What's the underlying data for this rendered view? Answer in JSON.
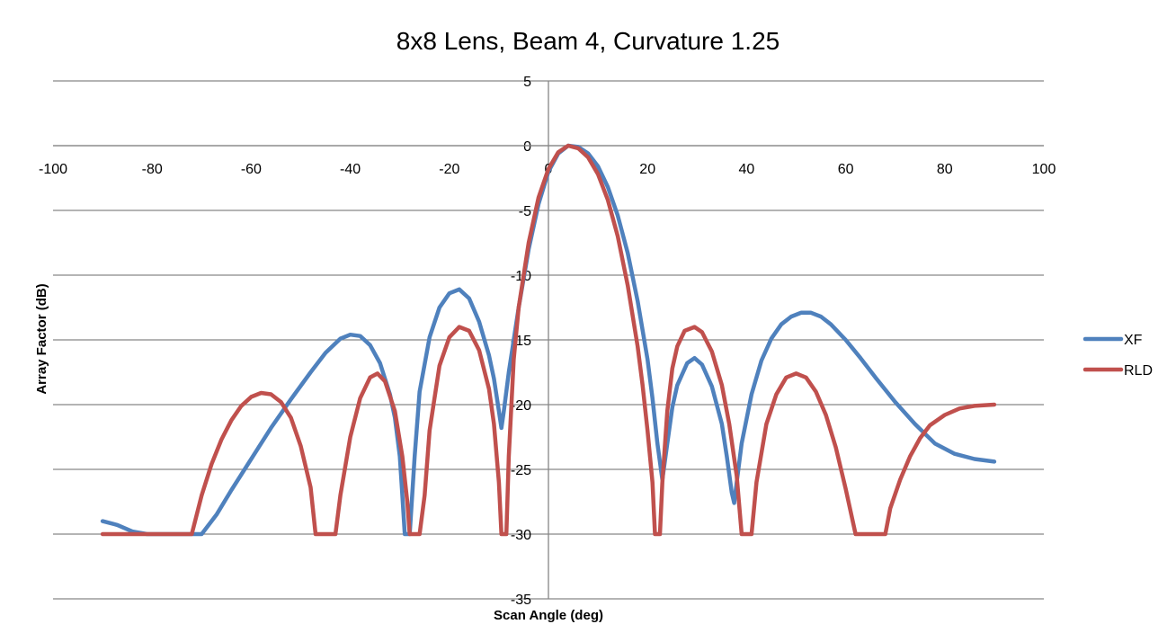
{
  "chart_data": {
    "type": "line",
    "title": "8x8 Lens, Beam 4, Curvature 1.25",
    "xlabel": "Scan Angle (deg)",
    "ylabel": "Array Factor (dB)",
    "xlim": [
      -100,
      100
    ],
    "ylim": [
      -35,
      5
    ],
    "x_ticks": [
      -100,
      -80,
      -60,
      -40,
      -20,
      0,
      20,
      40,
      60,
      80,
      100
    ],
    "y_ticks": [
      5,
      0,
      -5,
      -10,
      -15,
      -20,
      -25,
      -30,
      -35
    ],
    "grid": "horizontal",
    "legend_position": "right",
    "series": [
      {
        "name": "XF",
        "color": "#4F81BD",
        "points": [
          [
            -90,
            -29.0
          ],
          [
            -87,
            -29.3
          ],
          [
            -84,
            -29.8
          ],
          [
            -81,
            -30.0
          ],
          [
            -77,
            -30.0
          ],
          [
            -73,
            -30.0
          ],
          [
            -70,
            -30.0
          ],
          [
            -67,
            -28.5
          ],
          [
            -64,
            -26.6
          ],
          [
            -60,
            -24.2
          ],
          [
            -56,
            -21.8
          ],
          [
            -52,
            -19.6
          ],
          [
            -48,
            -17.5
          ],
          [
            -45,
            -16.0
          ],
          [
            -42,
            -14.9
          ],
          [
            -40,
            -14.6
          ],
          [
            -38,
            -14.7
          ],
          [
            -36,
            -15.4
          ],
          [
            -34,
            -16.8
          ],
          [
            -32,
            -19.2
          ],
          [
            -31,
            -21.0
          ],
          [
            -30,
            -24.0
          ],
          [
            -29.5,
            -27.0
          ],
          [
            -29,
            -30.0
          ],
          [
            -28,
            -30.0
          ],
          [
            -27,
            -24.0
          ],
          [
            -26,
            -19.0
          ],
          [
            -24,
            -14.8
          ],
          [
            -22,
            -12.5
          ],
          [
            -20,
            -11.4
          ],
          [
            -18,
            -11.1
          ],
          [
            -16,
            -11.8
          ],
          [
            -14,
            -13.6
          ],
          [
            -12,
            -16.2
          ],
          [
            -11,
            -18.0
          ],
          [
            -10,
            -20.5
          ],
          [
            -9.5,
            -21.8
          ],
          [
            -9,
            -20.5
          ],
          [
            -8,
            -17.5
          ],
          [
            -6,
            -12.5
          ],
          [
            -4,
            -8.0
          ],
          [
            -2,
            -4.5
          ],
          [
            0,
            -2.0
          ],
          [
            2,
            -0.6
          ],
          [
            4,
            0.0
          ],
          [
            6,
            -0.1
          ],
          [
            8,
            -0.6
          ],
          [
            10,
            -1.6
          ],
          [
            12,
            -3.2
          ],
          [
            14,
            -5.4
          ],
          [
            16,
            -8.3
          ],
          [
            18,
            -12.0
          ],
          [
            20,
            -16.5
          ],
          [
            21,
            -19.5
          ],
          [
            22,
            -23.0
          ],
          [
            23,
            -25.8
          ],
          [
            24,
            -23.0
          ],
          [
            25,
            -20.2
          ],
          [
            26,
            -18.5
          ],
          [
            28,
            -16.8
          ],
          [
            29.5,
            -16.4
          ],
          [
            31,
            -16.9
          ],
          [
            33,
            -18.6
          ],
          [
            35,
            -21.5
          ],
          [
            36,
            -24.0
          ],
          [
            37,
            -26.8
          ],
          [
            37.5,
            -27.6
          ],
          [
            38,
            -26.0
          ],
          [
            39,
            -23.0
          ],
          [
            41,
            -19.2
          ],
          [
            43,
            -16.6
          ],
          [
            45,
            -14.9
          ],
          [
            47,
            -13.8
          ],
          [
            49,
            -13.2
          ],
          [
            51,
            -12.9
          ],
          [
            53,
            -12.9
          ],
          [
            55,
            -13.2
          ],
          [
            57,
            -13.8
          ],
          [
            60,
            -15.0
          ],
          [
            63,
            -16.4
          ],
          [
            66,
            -17.9
          ],
          [
            70,
            -19.8
          ],
          [
            74,
            -21.5
          ],
          [
            78,
            -23.0
          ],
          [
            82,
            -23.8
          ],
          [
            86,
            -24.2
          ],
          [
            90,
            -24.4
          ]
        ]
      },
      {
        "name": "RLD",
        "color": "#C0504D",
        "points": [
          [
            -90,
            -30.0
          ],
          [
            -80,
            -30.0
          ],
          [
            -72,
            -30.0
          ],
          [
            -70,
            -27.0
          ],
          [
            -68,
            -24.6
          ],
          [
            -66,
            -22.7
          ],
          [
            -64,
            -21.2
          ],
          [
            -62,
            -20.1
          ],
          [
            -60,
            -19.4
          ],
          [
            -58,
            -19.1
          ],
          [
            -56,
            -19.2
          ],
          [
            -54,
            -19.8
          ],
          [
            -52,
            -21.0
          ],
          [
            -50,
            -23.2
          ],
          [
            -48,
            -26.4
          ],
          [
            -47,
            -30.0
          ],
          [
            -43,
            -30.0
          ],
          [
            -42,
            -27.0
          ],
          [
            -40,
            -22.5
          ],
          [
            -38,
            -19.5
          ],
          [
            -36,
            -17.9
          ],
          [
            -34.5,
            -17.6
          ],
          [
            -33,
            -18.2
          ],
          [
            -31,
            -20.5
          ],
          [
            -29.5,
            -24.0
          ],
          [
            -28.5,
            -27.5
          ],
          [
            -28,
            -30.0
          ],
          [
            -26,
            -30.0
          ],
          [
            -25,
            -27.0
          ],
          [
            -24,
            -22.0
          ],
          [
            -22,
            -17.0
          ],
          [
            -20,
            -14.8
          ],
          [
            -18,
            -14.0
          ],
          [
            -16,
            -14.3
          ],
          [
            -14,
            -15.8
          ],
          [
            -12,
            -18.8
          ],
          [
            -11,
            -21.5
          ],
          [
            -10,
            -26.0
          ],
          [
            -9.5,
            -30.0
          ],
          [
            -8.5,
            -30.0
          ],
          [
            -8,
            -24.0
          ],
          [
            -7,
            -16.5
          ],
          [
            -6,
            -12.5
          ],
          [
            -4,
            -7.5
          ],
          [
            -2,
            -4.0
          ],
          [
            0,
            -1.8
          ],
          [
            2,
            -0.5
          ],
          [
            4,
            0.0
          ],
          [
            6,
            -0.2
          ],
          [
            8,
            -0.9
          ],
          [
            10,
            -2.2
          ],
          [
            12,
            -4.2
          ],
          [
            14,
            -7.0
          ],
          [
            16,
            -10.8
          ],
          [
            18,
            -15.5
          ],
          [
            19,
            -18.5
          ],
          [
            20,
            -22.0
          ],
          [
            21,
            -26.0
          ],
          [
            21.5,
            -30.0
          ],
          [
            22.5,
            -30.0
          ],
          [
            23,
            -26.0
          ],
          [
            24,
            -20.5
          ],
          [
            25,
            -17.2
          ],
          [
            26,
            -15.5
          ],
          [
            27.5,
            -14.3
          ],
          [
            29.5,
            -14.0
          ],
          [
            31,
            -14.4
          ],
          [
            33,
            -15.9
          ],
          [
            35,
            -18.5
          ],
          [
            36.5,
            -21.5
          ],
          [
            38,
            -25.5
          ],
          [
            39,
            -30.0
          ],
          [
            41,
            -30.0
          ],
          [
            42,
            -26.0
          ],
          [
            44,
            -21.5
          ],
          [
            46,
            -19.2
          ],
          [
            48,
            -17.9
          ],
          [
            50,
            -17.6
          ],
          [
            52,
            -17.9
          ],
          [
            54,
            -19.0
          ],
          [
            56,
            -20.8
          ],
          [
            58,
            -23.3
          ],
          [
            60,
            -26.5
          ],
          [
            62,
            -30.0
          ],
          [
            68,
            -30.0
          ],
          [
            69,
            -28.0
          ],
          [
            71,
            -25.8
          ],
          [
            73,
            -24.0
          ],
          [
            75,
            -22.6
          ],
          [
            77,
            -21.6
          ],
          [
            80,
            -20.8
          ],
          [
            83,
            -20.3
          ],
          [
            86,
            -20.1
          ],
          [
            90,
            -20.0
          ]
        ]
      }
    ]
  }
}
